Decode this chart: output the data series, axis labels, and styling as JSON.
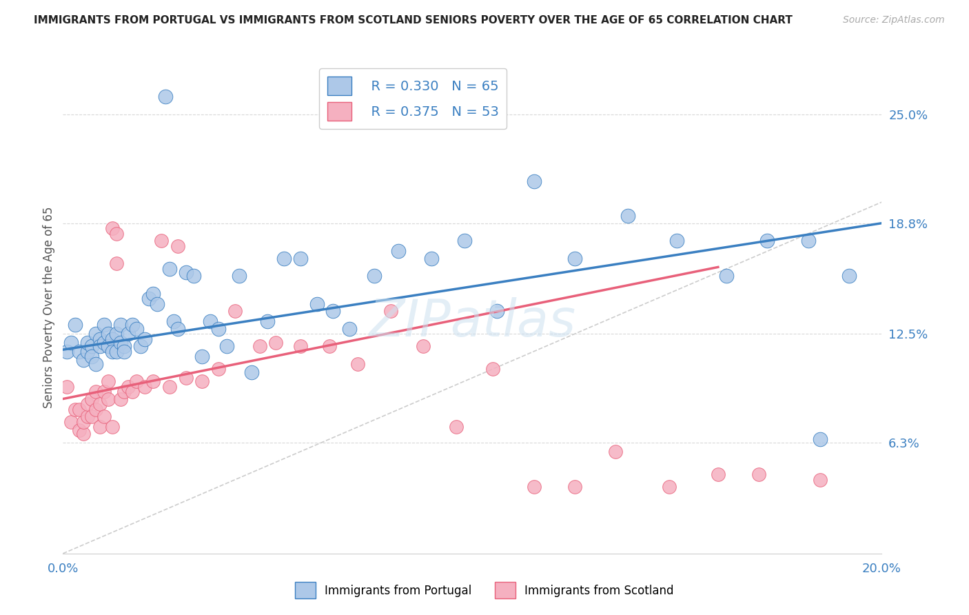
{
  "title": "IMMIGRANTS FROM PORTUGAL VS IMMIGRANTS FROM SCOTLAND SENIORS POVERTY OVER THE AGE OF 65 CORRELATION CHART",
  "source": "Source: ZipAtlas.com",
  "ylabel": "Seniors Poverty Over the Age of 65",
  "xlim": [
    0.0,
    0.2
  ],
  "ylim": [
    0.0,
    0.28
  ],
  "ytick_labels_right": [
    "25.0%",
    "18.8%",
    "12.5%",
    "6.3%"
  ],
  "ytick_vals_right": [
    0.25,
    0.188,
    0.125,
    0.063
  ],
  "background_color": "#ffffff",
  "grid_color": "#d8d8d8",
  "portugal_color": "#adc8e8",
  "scotland_color": "#f5b0c0",
  "portugal_line_color": "#3a7fc1",
  "scotland_line_color": "#e8607a",
  "diagonal_color": "#cccccc",
  "legend_R_portugal": "R = 0.330",
  "legend_N_portugal": "N = 65",
  "legend_R_scotland": "R = 0.375",
  "legend_N_scotland": "N = 53",
  "portugal_x": [
    0.001,
    0.002,
    0.003,
    0.004,
    0.005,
    0.006,
    0.006,
    0.007,
    0.007,
    0.008,
    0.008,
    0.009,
    0.009,
    0.01,
    0.01,
    0.011,
    0.011,
    0.012,
    0.012,
    0.013,
    0.013,
    0.014,
    0.014,
    0.015,
    0.015,
    0.016,
    0.017,
    0.018,
    0.019,
    0.02,
    0.021,
    0.022,
    0.023,
    0.025,
    0.026,
    0.027,
    0.028,
    0.03,
    0.032,
    0.034,
    0.036,
    0.038,
    0.04,
    0.043,
    0.046,
    0.05,
    0.054,
    0.058,
    0.062,
    0.066,
    0.07,
    0.076,
    0.082,
    0.09,
    0.098,
    0.106,
    0.115,
    0.125,
    0.138,
    0.15,
    0.162,
    0.172,
    0.182,
    0.192,
    0.185
  ],
  "portugal_y": [
    0.115,
    0.12,
    0.13,
    0.115,
    0.11,
    0.115,
    0.12,
    0.118,
    0.112,
    0.125,
    0.108,
    0.122,
    0.118,
    0.13,
    0.12,
    0.125,
    0.118,
    0.122,
    0.115,
    0.125,
    0.115,
    0.13,
    0.12,
    0.118,
    0.115,
    0.125,
    0.13,
    0.128,
    0.118,
    0.122,
    0.145,
    0.148,
    0.142,
    0.26,
    0.162,
    0.132,
    0.128,
    0.16,
    0.158,
    0.112,
    0.132,
    0.128,
    0.118,
    0.158,
    0.103,
    0.132,
    0.168,
    0.168,
    0.142,
    0.138,
    0.128,
    0.158,
    0.172,
    0.168,
    0.178,
    0.138,
    0.212,
    0.168,
    0.192,
    0.178,
    0.158,
    0.178,
    0.178,
    0.158,
    0.065
  ],
  "scotland_x": [
    0.001,
    0.002,
    0.003,
    0.004,
    0.004,
    0.005,
    0.005,
    0.006,
    0.006,
    0.007,
    0.007,
    0.008,
    0.008,
    0.009,
    0.009,
    0.01,
    0.01,
    0.011,
    0.011,
    0.012,
    0.012,
    0.013,
    0.013,
    0.014,
    0.015,
    0.016,
    0.017,
    0.018,
    0.02,
    0.022,
    0.024,
    0.026,
    0.028,
    0.03,
    0.034,
    0.038,
    0.042,
    0.048,
    0.052,
    0.058,
    0.065,
    0.072,
    0.08,
    0.088,
    0.096,
    0.105,
    0.115,
    0.125,
    0.135,
    0.148,
    0.16,
    0.17,
    0.185
  ],
  "scotland_y": [
    0.095,
    0.075,
    0.082,
    0.07,
    0.082,
    0.068,
    0.075,
    0.078,
    0.085,
    0.078,
    0.088,
    0.082,
    0.092,
    0.072,
    0.085,
    0.078,
    0.092,
    0.088,
    0.098,
    0.072,
    0.185,
    0.165,
    0.182,
    0.088,
    0.092,
    0.095,
    0.092,
    0.098,
    0.095,
    0.098,
    0.178,
    0.095,
    0.175,
    0.1,
    0.098,
    0.105,
    0.138,
    0.118,
    0.12,
    0.118,
    0.118,
    0.108,
    0.138,
    0.118,
    0.072,
    0.105,
    0.038,
    0.038,
    0.058,
    0.038,
    0.045,
    0.045,
    0.042
  ]
}
